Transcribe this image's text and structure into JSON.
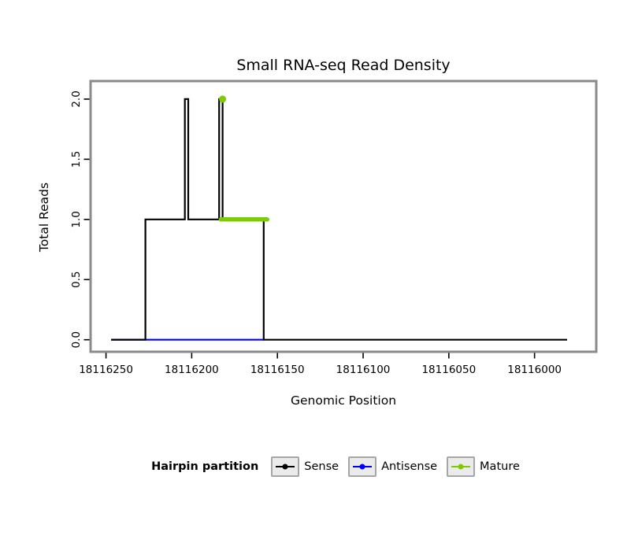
{
  "chart_data": {
    "type": "line",
    "title": "Small RNA-seq Read Density",
    "xlabel": "Genomic Position",
    "ylabel": "Total Reads",
    "grid": false,
    "x_axis": {
      "domain": [
        18116259,
        18115964
      ],
      "direction": "descending",
      "ticks": [
        "18116250",
        "18116200",
        "18116150",
        "18116100",
        "18116050",
        "18116000"
      ]
    },
    "y_axis": {
      "domain": [
        -0.1,
        2.15
      ],
      "ticks": [
        "0.0",
        "0.5",
        "1.0",
        "1.5",
        "2.0"
      ]
    },
    "series": [
      {
        "name": "Antisense",
        "color": "#0000FF",
        "width": 2.2,
        "points": [
          [
            18116247,
            0
          ],
          [
            18116158,
            0
          ]
        ]
      },
      {
        "name": "Sense",
        "color": "#000000",
        "width": 2.2,
        "points": [
          [
            18116247,
            0
          ],
          [
            18116227,
            0
          ],
          [
            18116227,
            1
          ],
          [
            18116204,
            1
          ],
          [
            18116204,
            2
          ],
          [
            18116202,
            2
          ],
          [
            18116202,
            1
          ],
          [
            18116184,
            1
          ],
          [
            18116184,
            2
          ],
          [
            18116182,
            2
          ],
          [
            18116182,
            1
          ],
          [
            18116158,
            1
          ],
          [
            18116158,
            0
          ],
          [
            18115981,
            0
          ]
        ]
      },
      {
        "name": "Mature",
        "color": "#7CCC00",
        "width": 5.5,
        "linecap": "round",
        "points": [
          [
            18116183,
            1
          ],
          [
            18116156,
            1
          ]
        ],
        "markers": [
          [
            18116182,
            2
          ]
        ]
      }
    ],
    "legend": {
      "title": "Hairpin partition",
      "position": "bottom",
      "entries": [
        {
          "label": "Sense",
          "color": "#000000"
        },
        {
          "label": "Antisense",
          "color": "#0000FF"
        },
        {
          "label": "Mature",
          "color": "#7CCC00"
        }
      ]
    }
  }
}
